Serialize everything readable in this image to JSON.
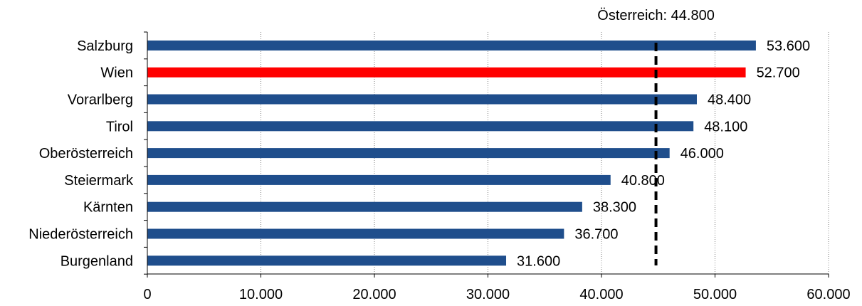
{
  "chart_data": {
    "type": "bar",
    "orientation": "horizontal",
    "categories": [
      "Salzburg",
      "Wien",
      "Vorarlberg",
      "Tirol",
      "Oberösterreich",
      "Steiermark",
      "Kärnten",
      "Niederösterreich",
      "Burgenland"
    ],
    "values": [
      53600,
      52700,
      48400,
      48100,
      46000,
      40800,
      38300,
      36700,
      31600
    ],
    "value_labels": [
      "53.600",
      "52.700",
      "48.400",
      "48.100",
      "46.000",
      "40.800",
      "38.300",
      "36.700",
      "31.600"
    ],
    "highlight_category": "Wien",
    "colors": {
      "bar": "#1F4E8C",
      "highlight": "#FF0000",
      "reference_line": "#000000",
      "grid": "#808080"
    },
    "xlim": [
      0,
      60000
    ],
    "x_ticks": [
      0,
      10000,
      20000,
      30000,
      40000,
      50000,
      60000
    ],
    "x_tick_labels": [
      "0",
      "10.000",
      "20.000",
      "30.000",
      "40.000",
      "50.000",
      "60.000"
    ],
    "grid": "vertical dotted",
    "title": "",
    "xlabel": "",
    "ylabel": "",
    "reference_line": {
      "value": 44800,
      "label": "Österreich: 44.800"
    }
  }
}
